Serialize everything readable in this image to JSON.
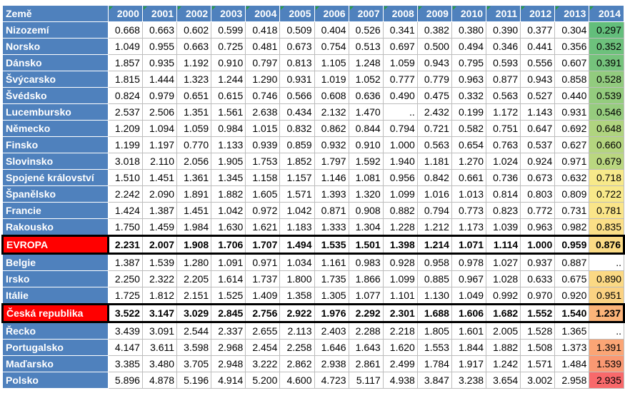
{
  "table": {
    "header_country": "Země",
    "years": [
      "2000",
      "2001",
      "2002",
      "2003",
      "2004",
      "2005",
      "2006",
      "2007",
      "2008",
      "2009",
      "2010",
      "2011",
      "2012",
      "2013",
      "2014"
    ],
    "rows": [
      {
        "name": "Nizozemí",
        "values": [
          "0.668",
          "0.663",
          "0.602",
          "0.599",
          "0.418",
          "0.509",
          "0.404",
          "0.526",
          "0.341",
          "0.382",
          "0.380",
          "0.390",
          "0.377",
          "0.304",
          "0.297"
        ],
        "color_2014": "#63be7b"
      },
      {
        "name": "Norsko",
        "values": [
          "1.049",
          "0.955",
          "0.663",
          "0.725",
          "0.481",
          "0.673",
          "0.754",
          "0.513",
          "0.697",
          "0.500",
          "0.494",
          "0.346",
          "0.441",
          "0.356",
          "0.352"
        ],
        "color_2014": "#6dc17c"
      },
      {
        "name": "Dánsko",
        "values": [
          "1.857",
          "0.935",
          "1.192",
          "0.910",
          "0.797",
          "0.813",
          "1.105",
          "1.248",
          "1.059",
          "0.943",
          "0.795",
          "0.593",
          "0.556",
          "0.607",
          "0.391"
        ],
        "color_2014": "#75c37c"
      },
      {
        "name": "Švýcarsko",
        "values": [
          "1.815",
          "1.444",
          "1.323",
          "1.244",
          "1.290",
          "0.931",
          "1.019",
          "1.052",
          "0.777",
          "0.779",
          "0.963",
          "0.877",
          "0.943",
          "0.858",
          "0.528"
        ],
        "color_2014": "#92cb7e"
      },
      {
        "name": "Švédsko",
        "values": [
          "0.824",
          "0.979",
          "0.651",
          "0.615",
          "0.746",
          "0.566",
          "0.608",
          "0.636",
          "0.490",
          "0.475",
          "0.332",
          "0.563",
          "0.527",
          "0.440",
          "0.539"
        ],
        "color_2014": "#94cc7e"
      },
      {
        "name": "Lucembursko",
        "values": [
          "2.537",
          "2.506",
          "1.351",
          "1.561",
          "2.638",
          "0.434",
          "2.132",
          "1.470",
          "..",
          "2.432",
          "0.199",
          "1.172",
          "1.143",
          "0.931",
          "0.546"
        ],
        "color_2014": "#96cc7e"
      },
      {
        "name": "Německo",
        "values": [
          "1.209",
          "1.094",
          "1.059",
          "0.984",
          "1.015",
          "0.832",
          "0.862",
          "0.844",
          "0.794",
          "0.721",
          "0.582",
          "0.751",
          "0.647",
          "0.692",
          "0.648"
        ],
        "color_2014": "#b0d47f"
      },
      {
        "name": "Finsko",
        "values": [
          "1.199",
          "1.197",
          "0.770",
          "1.133",
          "0.939",
          "0.859",
          "0.932",
          "0.910",
          "1.000",
          "0.563",
          "0.654",
          "0.763",
          "0.537",
          "0.627",
          "0.660"
        ],
        "color_2014": "#b4d57f"
      },
      {
        "name": "Slovinsko",
        "values": [
          "3.018",
          "2.110",
          "2.056",
          "1.905",
          "1.753",
          "1.852",
          "1.797",
          "1.592",
          "1.940",
          "1.181",
          "1.270",
          "1.024",
          "0.924",
          "0.971",
          "0.679"
        ],
        "color_2014": "#bad780"
      },
      {
        "name": "Spojené království",
        "values": [
          "1.510",
          "1.451",
          "1.361",
          "1.345",
          "1.158",
          "1.157",
          "1.146",
          "1.081",
          "0.956",
          "0.842",
          "0.661",
          "0.736",
          "0.673",
          "0.632",
          "0.718"
        ],
        "color_2014": "#f7e98a"
      },
      {
        "name": "Španělsko",
        "values": [
          "2.242",
          "2.090",
          "1.891",
          "1.882",
          "1.605",
          "1.571",
          "1.393",
          "1.320",
          "1.099",
          "1.016",
          "1.013",
          "0.814",
          "0.803",
          "0.809",
          "0.722"
        ],
        "color_2014": "#f8e98a"
      },
      {
        "name": "Francie",
        "values": [
          "1.424",
          "1.387",
          "1.451",
          "1.042",
          "0.972",
          "1.042",
          "0.871",
          "0.908",
          "0.882",
          "0.794",
          "0.773",
          "0.823",
          "0.772",
          "0.731",
          "0.781"
        ],
        "color_2014": "#fae589"
      },
      {
        "name": "Rakousko",
        "values": [
          "1.750",
          "1.459",
          "1.984",
          "1.630",
          "1.621",
          "1.183",
          "1.333",
          "1.304",
          "1.228",
          "1.212",
          "1.173",
          "1.039",
          "0.963",
          "0.982",
          "0.835"
        ],
        "color_2014": "#fbdf87"
      },
      {
        "name": "EVROPA",
        "values": [
          "2.231",
          "2.007",
          "1.908",
          "1.706",
          "1.707",
          "1.494",
          "1.535",
          "1.501",
          "1.398",
          "1.214",
          "1.071",
          "1.114",
          "1.000",
          "0.959",
          "0.876"
        ],
        "color_2014": "#fbdb85",
        "highlight": true
      },
      {
        "name": "Belgie",
        "values": [
          "1.387",
          "1.539",
          "1.280",
          "1.091",
          "0.971",
          "1.034",
          "1.161",
          "0.983",
          "0.928",
          "0.958",
          "0.978",
          "1.027",
          "0.937",
          "0.887",
          ".."
        ],
        "color_2014": "#ffffff"
      },
      {
        "name": "Irsko",
        "values": [
          "2.250",
          "2.322",
          "2.205",
          "1.614",
          "1.737",
          "1.800",
          "1.735",
          "1.866",
          "1.099",
          "0.885",
          "0.967",
          "1.028",
          "0.633",
          "0.675",
          "0.890"
        ],
        "color_2014": "#fbd984"
      },
      {
        "name": "Itálie",
        "values": [
          "1.725",
          "1.812",
          "2.151",
          "1.525",
          "1.409",
          "1.358",
          "1.305",
          "1.077",
          "1.101",
          "1.130",
          "1.049",
          "0.992",
          "0.970",
          "0.920",
          "0.951"
        ],
        "color_2014": "#fbd282"
      },
      {
        "name": "Česká republika",
        "values": [
          "3.522",
          "3.147",
          "3.029",
          "2.845",
          "2.756",
          "2.922",
          "1.976",
          "2.292",
          "2.301",
          "1.688",
          "1.606",
          "1.682",
          "1.552",
          "1.540",
          "1.237"
        ],
        "color_2014": "#fcb479",
        "highlight": true
      },
      {
        "name": "Řecko",
        "values": [
          "3.439",
          "3.091",
          "2.544",
          "2.337",
          "2.655",
          "2.113",
          "2.403",
          "2.288",
          "2.218",
          "1.805",
          "1.601",
          "2.005",
          "1.528",
          "1.365",
          ".."
        ],
        "color_2014": "#ffffff"
      },
      {
        "name": "Portugalsko",
        "values": [
          "4.147",
          "3.611",
          "3.598",
          "2.968",
          "2.454",
          "2.258",
          "1.646",
          "1.643",
          "1.620",
          "1.553",
          "1.844",
          "1.882",
          "1.508",
          "1.373",
          "1.391"
        ],
        "color_2014": "#fba575"
      },
      {
        "name": "Maďarsko",
        "values": [
          "3.385",
          "3.480",
          "3.705",
          "2.948",
          "3.222",
          "2.862",
          "2.938",
          "2.861",
          "2.499",
          "1.784",
          "1.917",
          "1.242",
          "1.571",
          "1.484",
          "1.539"
        ],
        "color_2014": "#fa9872"
      },
      {
        "name": "Polsko",
        "values": [
          "5.896",
          "4.878",
          "5.196",
          "4.914",
          "5.200",
          "4.600",
          "4.723",
          "5.117",
          "4.938",
          "3.847",
          "3.238",
          "3.654",
          "3.002",
          "2.958",
          "2.935"
        ],
        "color_2014": "#f8696b"
      }
    ]
  }
}
